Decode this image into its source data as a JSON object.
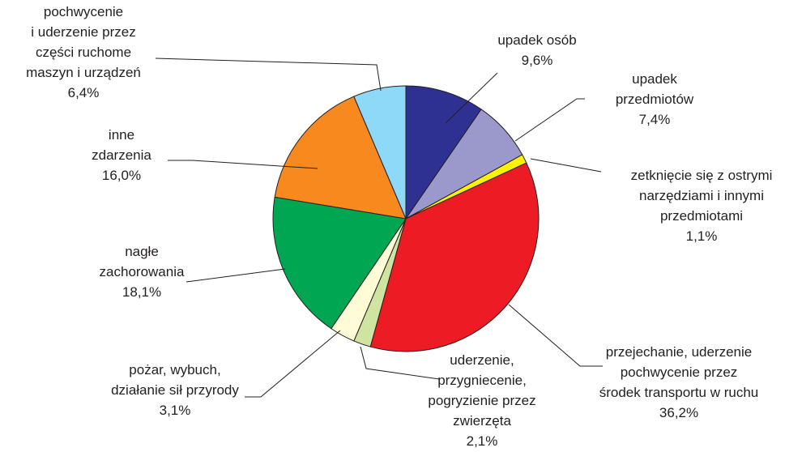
{
  "chart_data": {
    "type": "pie",
    "categories": [
      [
        "upadek osób"
      ],
      [
        "upadek",
        "przedmiotów"
      ],
      [
        "zetknięcie się z ostrymi",
        "narzędziami i innymi",
        "przedmiotami"
      ],
      [
        "przejechanie, uderzenie",
        "pochwycenie przez",
        "środek transportu w ruchu"
      ],
      [
        "uderzenie,",
        "przygniecenie,",
        "pogryzienie przez",
        "zwierzęta"
      ],
      [
        "pożar, wybuch,",
        "działanie sił przyrody"
      ],
      [
        "nagłe",
        "zachorowania"
      ],
      [
        "inne",
        "zdarzenia"
      ],
      [
        "pochwycenie",
        "i uderzenie przez",
        "części ruchome",
        "maszyn i urządzeń"
      ]
    ],
    "values": [
      9.6,
      7.4,
      1.1,
      36.2,
      2.1,
      3.1,
      18.1,
      16.0,
      6.4
    ],
    "value_labels": [
      "9,6%",
      "7,4%",
      "1,1%",
      "36,2%",
      "2,1%",
      "3,1%",
      "18,1%",
      "16,0%",
      "6,4%"
    ],
    "colors": [
      "#2e3192",
      "#9b98cb",
      "#fff200",
      "#ed1c24",
      "#cfe4a0",
      "#fffbd6",
      "#00a651",
      "#f7891f",
      "#8ed8f8"
    ]
  }
}
